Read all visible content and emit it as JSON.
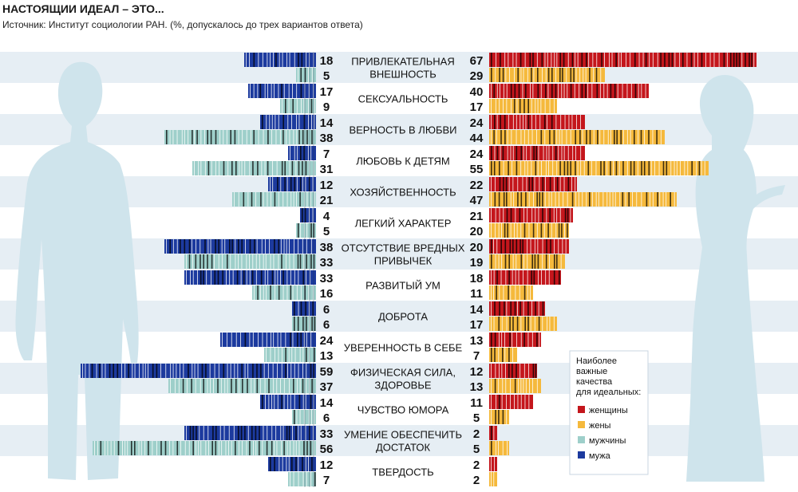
{
  "title": "НАСТОЯЩИИ ИДЕАЛ – ЭТО...",
  "subtitle": "Источник: Институт социологии РАН. (%, допускалось до трех вариантов ответа)",
  "legend": {
    "title": [
      "Наиболее",
      "важные",
      "качества",
      "для идеальных:"
    ],
    "items": [
      {
        "label": "женщины",
        "color": "#c4161c"
      },
      {
        "label": "жены",
        "color": "#f5b93c"
      },
      {
        "label": "мужчины",
        "color": "#9ecfca"
      },
      {
        "label": "мужа",
        "color": "#1c3a9e"
      }
    ]
  },
  "chart_data": {
    "type": "bar",
    "orientation": "horizontal-diverging",
    "categories": [
      [
        "ПРИВЛЕКАТЕЛЬНАЯ",
        "ВНЕШНОСТЬ"
      ],
      [
        "СЕКСУАЛЬНОСТЬ"
      ],
      [
        "ВЕРНОСТЬ В ЛЮБВИ"
      ],
      [
        "ЛЮБОВЬ К ДЕТЯМ"
      ],
      [
        "ХОЗЯЙСТВЕННОСТЬ"
      ],
      [
        "ЛЕГКИЙ ХАРАКТЕР"
      ],
      [
        "ОТСУТСТВИЕ ВРЕДНЫХ",
        "ПРИВЫЧЕК"
      ],
      [
        "РАЗВИТЫЙ УМ"
      ],
      [
        "ДОБРОТА"
      ],
      [
        "УВЕРЕННОСТЬ В СЕБЕ"
      ],
      [
        "ФИЗИЧЕСКАЯ СИЛА,",
        "ЗДОРОВЬЕ"
      ],
      [
        "ЧУВСТВО ЮМОРА"
      ],
      [
        "УМЕНИЕ ОБЕСПЕЧИТЬ",
        "ДОСТАТОК"
      ],
      [
        "ТВЕРДОСТЬ"
      ]
    ],
    "series": [
      {
        "name": "мужа",
        "side": "left",
        "color": "#1c3a9e",
        "values": [
          18,
          17,
          14,
          7,
          12,
          4,
          38,
          33,
          6,
          24,
          59,
          14,
          33,
          12
        ]
      },
      {
        "name": "мужчины",
        "side": "left",
        "color": "#9ecfca",
        "values": [
          5,
          9,
          38,
          31,
          21,
          5,
          33,
          16,
          6,
          13,
          37,
          6,
          56,
          7
        ]
      },
      {
        "name": "женщины",
        "side": "right",
        "color": "#c4161c",
        "values": [
          67,
          40,
          24,
          24,
          22,
          21,
          20,
          18,
          14,
          13,
          12,
          11,
          2,
          2
        ]
      },
      {
        "name": "жены",
        "side": "right",
        "color": "#f5b93c",
        "values": [
          29,
          17,
          44,
          55,
          47,
          20,
          19,
          11,
          17,
          7,
          13,
          5,
          5,
          2
        ]
      }
    ]
  }
}
